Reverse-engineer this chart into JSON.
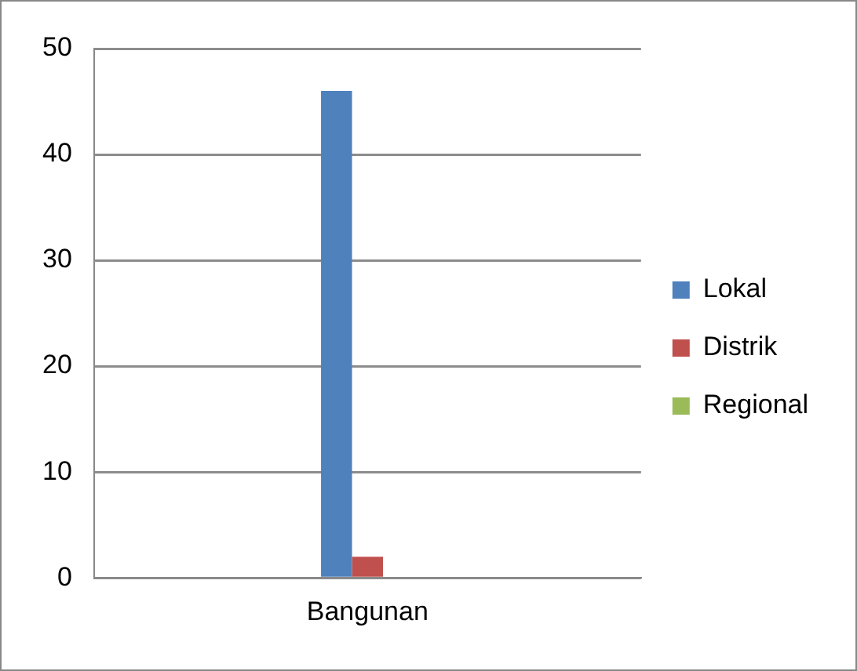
{
  "chart_data": {
    "type": "bar",
    "categories": [
      "Bangunan"
    ],
    "series": [
      {
        "name": "Lokal",
        "color": "#4f81bd",
        "values": [
          46
        ]
      },
      {
        "name": "Distrik",
        "color": "#c0504d",
        "values": [
          2
        ]
      },
      {
        "name": "Regional",
        "color": "#9bbb59",
        "values": [
          0
        ]
      }
    ],
    "ylim": [
      0,
      50
    ],
    "yticks": [
      0,
      10,
      20,
      30,
      40,
      50
    ],
    "grid": "y",
    "legend": "right"
  }
}
